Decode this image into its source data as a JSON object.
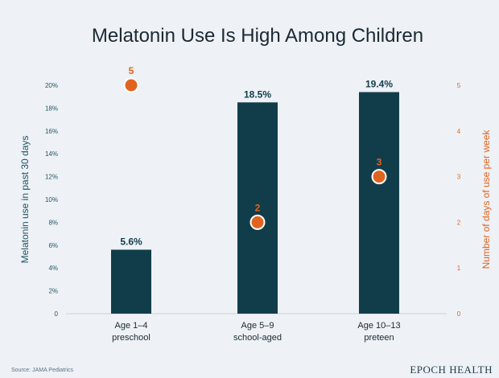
{
  "colors": {
    "bar": "#113d4b",
    "dot": "#e0641f",
    "left_axis": "#1f5466",
    "right_axis": "#e0641f",
    "title": "#1a2a33",
    "category": "#1a2a33",
    "background": "#eef1f5"
  },
  "source": "Source: JAMA Pediatrics",
  "brand": "EPOCH HEALTH",
  "chart_data": {
    "type": "bar",
    "title": "Melatonin Use Is High Among Children",
    "categories": [
      {
        "line1": "Age 1–4",
        "line2": "preschool"
      },
      {
        "line1": "Age 5–9",
        "line2": "school-aged"
      },
      {
        "line1": "Age 10–13",
        "line2": "preteen"
      }
    ],
    "series": [
      {
        "kind": "bar",
        "axis": "left",
        "values": [
          5.6,
          18.5,
          19.4
        ],
        "labels": [
          "5.6%",
          "18.5%",
          "19.4%"
        ]
      },
      {
        "kind": "scatter",
        "axis": "right",
        "values": [
          5,
          2,
          3
        ],
        "labels": [
          "5",
          "2",
          "3"
        ]
      }
    ],
    "ylabel": "Melatonin use in past 30 days",
    "ylabel_right": "Number of days of use per week",
    "ylim": [
      0,
      20
    ],
    "ylim_right": [
      0,
      5
    ],
    "yticks": [
      "0",
      "2%",
      "4%",
      "6%",
      "8%",
      "10%",
      "12%",
      "14%",
      "16%",
      "18%",
      "20%"
    ],
    "yticks_right": [
      "0",
      "1",
      "2",
      "3",
      "4",
      "5"
    ],
    "grid": false,
    "legend": "none"
  }
}
